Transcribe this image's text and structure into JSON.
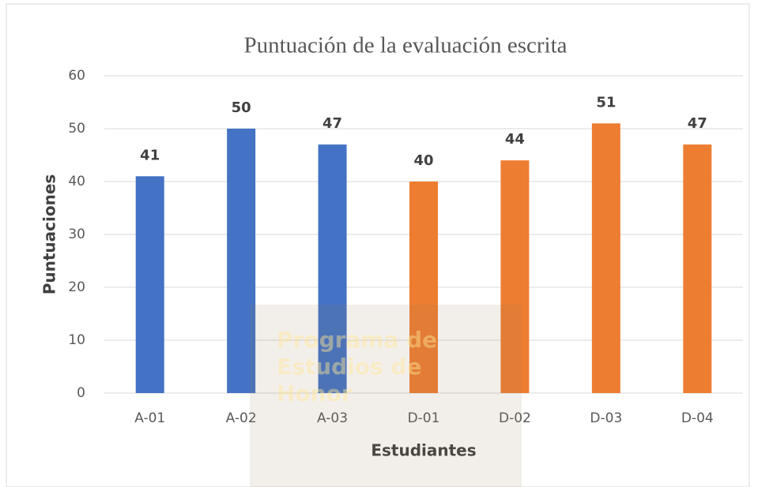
{
  "chart_data": {
    "type": "bar",
    "title": "Puntuación de la evaluación escrita",
    "x_label": "Estudiantes",
    "y_label": "Puntuaciones",
    "categories": [
      "A-01",
      "A-02",
      "A-03",
      "D-01",
      "D-02",
      "D-03",
      "D-04"
    ],
    "values": [
      41,
      50,
      47,
      40,
      44,
      51,
      47
    ],
    "colors": [
      "#4472c4",
      "#4472c4",
      "#4472c4",
      "#ed7d31",
      "#ed7d31",
      "#ed7d31",
      "#ed7d31"
    ],
    "ylim": [
      0,
      60
    ],
    "yticks": [
      0,
      10,
      20,
      30,
      40,
      50,
      60
    ],
    "grid": true,
    "data_labels": true,
    "watermark": [
      "Programa de",
      "Estudios de",
      "Honor"
    ]
  }
}
